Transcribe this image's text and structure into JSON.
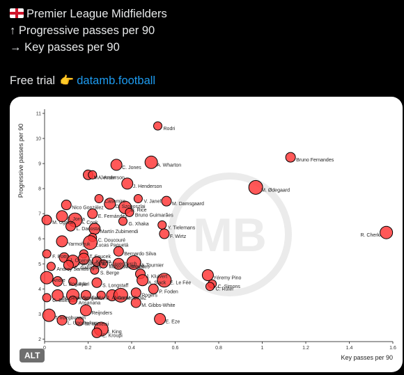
{
  "post": {
    "line1": "Premier League Midfielders",
    "line2": "↑ Progressive passes per 90",
    "line3": "→ Key passes per 90",
    "trial_text": "Free trial",
    "trial_emoji": "👉",
    "link_text": "datamb.football",
    "flag_icon": "england-flag-icon"
  },
  "alt_badge": "ALT",
  "watermark": "MB",
  "chart_data": {
    "type": "scatter",
    "xlabel": "Key passes per 90",
    "ylabel": "Progressive passes per 90",
    "xlim": [
      0,
      1.6
    ],
    "ylim": [
      1.9,
      11
    ],
    "xticks": [
      "0",
      "0.2",
      "0.4",
      "0.6",
      "0.8",
      "1",
      "1.2",
      "1.4",
      "1.6"
    ],
    "yticks": [
      "2",
      "3",
      "4",
      "5",
      "6",
      "7",
      "8",
      "9",
      "10",
      "11"
    ],
    "marker_color": "#ff3b3b",
    "points": [
      {
        "label": "Rodri",
        "x": 0.52,
        "y": 10.5
      },
      {
        "label": "Bruno Fernandes",
        "x": 1.13,
        "y": 9.25
      },
      {
        "label": "C. Jones",
        "x": 0.33,
        "y": 8.95
      },
      {
        "label": "A. Wharton",
        "x": 0.49,
        "y": 9.05
      },
      {
        "label": "M. Jensen",
        "x": 0.2,
        "y": 8.55
      },
      {
        "label": "A. Anderson",
        "x": 0.22,
        "y": 8.55
      },
      {
        "label": "J. Henderson",
        "x": 0.38,
        "y": 8.2
      },
      {
        "label": "M. Ødegaard",
        "x": 0.97,
        "y": 8.05
      },
      {
        "label": "Nico González",
        "x": 0.1,
        "y": 7.35
      },
      {
        "label": "Casemiro",
        "x": 0.25,
        "y": 7.6
      },
      {
        "label": "V. Janelt",
        "x": 0.43,
        "y": 7.6
      },
      {
        "label": "M. Damsgaard",
        "x": 0.56,
        "y": 7.5
      },
      {
        "label": "D. Szoboszlai",
        "x": 0.3,
        "y": 7.4
      },
      {
        "label": "D. Rice",
        "x": 0.37,
        "y": 7.25
      },
      {
        "label": "E. Fernández",
        "x": 0.22,
        "y": 7.0
      },
      {
        "label": "Bruno Guimarães",
        "x": 0.39,
        "y": 7.05
      },
      {
        "label": "J. Jorna",
        "x": 0.08,
        "y": 6.9
      },
      {
        "label": "A. Cook",
        "x": 0.14,
        "y": 6.75
      },
      {
        "label": "M. Ugarte",
        "x": 0.01,
        "y": 6.75
      },
      {
        "label": "G. Xhaka",
        "x": 0.36,
        "y": 6.7
      },
      {
        "label": "Y. Tielemans",
        "x": 0.54,
        "y": 6.55
      },
      {
        "label": "L. Dacosta",
        "x": 0.12,
        "y": 6.5
      },
      {
        "label": "Martín Zubimendi",
        "x": 0.23,
        "y": 6.4
      },
      {
        "label": "R. Cherki",
        "x": 1.57,
        "y": 6.25
      },
      {
        "label": "F. Wirtz",
        "x": 0.55,
        "y": 6.2
      },
      {
        "label": "C. Doucouré",
        "x": 0.22,
        "y": 6.05
      },
      {
        "label": "Yarmolyuk",
        "x": 0.08,
        "y": 5.9
      },
      {
        "label": "Lucas Paquetá",
        "x": 0.21,
        "y": 5.85
      },
      {
        "label": "Bernardo Silva",
        "x": 0.34,
        "y": 5.5
      },
      {
        "label": "F. Potts",
        "x": 0.01,
        "y": 5.4
      },
      {
        "label": "T. Soucek",
        "x": 0.18,
        "y": 5.4
      },
      {
        "label": "J. Onana",
        "x": 0.09,
        "y": 5.25
      },
      {
        "label": "M. Kilman",
        "x": 0.18,
        "y": 5.2
      },
      {
        "label": "Fernandinho",
        "x": 0.13,
        "y": 5.1
      },
      {
        "label": "R. Gravenberch",
        "x": 0.24,
        "y": 5.1
      },
      {
        "label": "Mateus Fernandes",
        "x": 0.27,
        "y": 5.0
      },
      {
        "label": "M. Mount",
        "x": 0.34,
        "y": 5.0
      },
      {
        "label": "M. Tournier",
        "x": 0.41,
        "y": 5.05
      },
      {
        "label": "C. Gallagher",
        "x": 0.11,
        "y": 4.95
      },
      {
        "label": "Andrey Santos",
        "x": 0.03,
        "y": 4.9
      },
      {
        "label": "S. Berge",
        "x": 0.23,
        "y": 4.75
      },
      {
        "label": "J. Kluivert",
        "x": 0.44,
        "y": 4.6
      },
      {
        "label": "Yéremy Pino",
        "x": 0.75,
        "y": 4.55
      },
      {
        "label": "Andre",
        "x": 0.01,
        "y": 4.45
      },
      {
        "label": "L. Bogarde",
        "x": 0.06,
        "y": 4.3
      },
      {
        "label": "Ayari",
        "x": 0.13,
        "y": 4.3
      },
      {
        "label": "A. Slack",
        "x": 0.45,
        "y": 4.35
      },
      {
        "label": "E. Le Fée",
        "x": 0.55,
        "y": 4.35
      },
      {
        "label": "S. Longstaff",
        "x": 0.24,
        "y": 4.25
      },
      {
        "label": "C. Simons",
        "x": 0.77,
        "y": 4.2
      },
      {
        "label": "C. Ruter",
        "x": 0.76,
        "y": 4.1
      },
      {
        "label": "P. Foden",
        "x": 0.5,
        "y": 4.0
      },
      {
        "label": "N. Semenyo",
        "x": 0.06,
        "y": 3.75
      },
      {
        "label": "I. Sangaré",
        "x": 0.13,
        "y": 3.75
      },
      {
        "label": "Fabiani",
        "x": 0.19,
        "y": 3.75
      },
      {
        "label": "J. Alvarez",
        "x": 0.26,
        "y": 3.75
      },
      {
        "label": "Gomes",
        "x": 0.31,
        "y": 3.75
      },
      {
        "label": "M. Ordaz",
        "x": 0.35,
        "y": 3.75
      },
      {
        "label": "Rogers",
        "x": 0.42,
        "y": 3.85
      },
      {
        "label": "C. Stiles",
        "x": 0.01,
        "y": 3.65
      },
      {
        "label": "Ansanana",
        "x": 0.13,
        "y": 3.55
      },
      {
        "label": "M. Gibbs-White",
        "x": 0.42,
        "y": 3.45
      },
      {
        "label": "Reijnders",
        "x": 0.19,
        "y": 3.15
      },
      {
        "label": "T. Iroegbunam",
        "x": 0.02,
        "y": 2.95
      },
      {
        "label": "L. Ugochukwu",
        "x": 0.08,
        "y": 2.75
      },
      {
        "label": "M. Munetsi",
        "x": 0.16,
        "y": 2.7
      },
      {
        "label": "E. Eze",
        "x": 0.53,
        "y": 2.8
      },
      {
        "label": "J. King",
        "x": 0.26,
        "y": 2.4
      },
      {
        "label": "E. Kroupi",
        "x": 0.24,
        "y": 2.25
      }
    ]
  }
}
